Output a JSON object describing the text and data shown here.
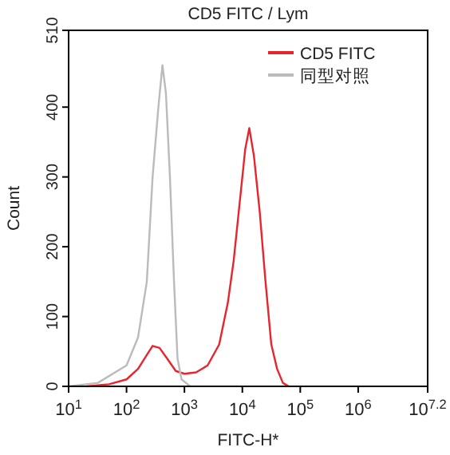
{
  "chart_data": {
    "type": "line",
    "title": "CD5 FITC / Lym",
    "xlabel": "FITC-H*",
    "ylabel": "Count",
    "log": "x",
    "legend": "top right",
    "grid": false,
    "xlim": [
      10,
      15848932
    ],
    "xticks": [
      {
        "value": 10,
        "label": "10$^{1}$"
      },
      {
        "value": 100,
        "label": "10$^{2}$"
      },
      {
        "value": 1000,
        "label": "10$^{3}$"
      },
      {
        "value": 10000,
        "label": "10$^{4}$"
      },
      {
        "value": 100000,
        "label": "10$^{5}$"
      },
      {
        "value": 1000000,
        "label": "10$^{6}$"
      },
      {
        "value": 15848932,
        "label": "10$^{7.2}$"
      }
    ],
    "ylim": [
      0,
      510
    ],
    "yticks": [
      0,
      100,
      200,
      300,
      400,
      510
    ],
    "series": [
      {
        "name": "CD5 FITC",
        "color": "#e8242c",
        "x": [
          20,
          50,
          100,
          158,
          224,
          282,
          372,
          501,
          708,
          1000,
          1585,
          2512,
          3981,
          5623,
          7079,
          8913,
          11220,
          13183,
          15849,
          19953,
          25119,
          31623,
          39811,
          50119,
          63096
        ],
        "values": [
          0,
          3,
          10,
          25,
          45,
          58,
          55,
          40,
          22,
          18,
          20,
          30,
          60,
          120,
          180,
          260,
          340,
          370,
          330,
          250,
          150,
          60,
          25,
          5,
          0
        ]
      },
      {
        "name": "同型对照",
        "color": "#bbbbbb",
        "x": [
          10,
          32,
          100,
          158,
          224,
          282,
          355,
          417,
          479,
          562,
          661,
          759,
          891,
          1259
        ],
        "values": [
          0,
          5,
          30,
          70,
          150,
          300,
          400,
          460,
          420,
          300,
          150,
          40,
          10,
          0
        ]
      }
    ]
  }
}
